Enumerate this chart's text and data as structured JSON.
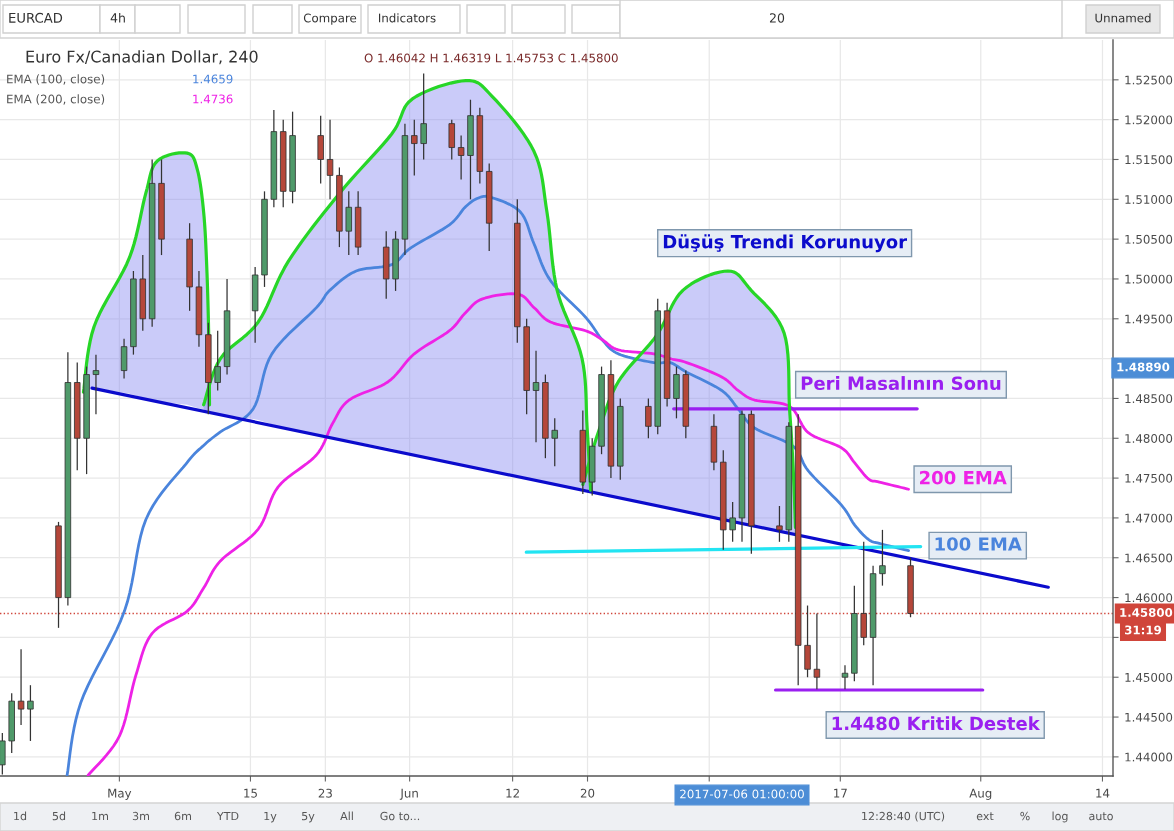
{
  "chart_data": {
    "type": "candlestick",
    "title": "Euro Fx/Canadian Dollar, 240",
    "subtitle": "O 1.46042 H 1.46319 L 1.45753 C 1.45800",
    "x": [
      "2017-04-18T12:00",
      "2017-04-19T12:00",
      "2017-04-20T12:00",
      "2017-04-21T12:00",
      "2017-04-24T12:00",
      "2017-04-25T12:00",
      "2017-04-26T12:00",
      "2017-04-27T12:00",
      "2017-04-28T12:00",
      "2017-05-01T12:00",
      "2017-05-02T12:00",
      "2017-05-03T12:00",
      "2017-05-04T12:00",
      "2017-05-05T12:00",
      "2017-05-08T12:00",
      "2017-05-09T12:00",
      "2017-05-10T12:00",
      "2017-05-11T12:00",
      "2017-05-12T12:00",
      "2017-05-15T12:00",
      "2017-05-16T12:00",
      "2017-05-17T12:00",
      "2017-05-18T12:00",
      "2017-05-19T12:00",
      "2017-05-22T12:00",
      "2017-05-23T12:00",
      "2017-05-24T12:00",
      "2017-05-25T12:00",
      "2017-05-26T12:00",
      "2017-05-29T12:00",
      "2017-05-30T12:00",
      "2017-05-31T12:00",
      "2017-06-01T12:00",
      "2017-06-02T12:00",
      "2017-06-05T12:00",
      "2017-06-06T12:00",
      "2017-06-07T12:00",
      "2017-06-08T12:00",
      "2017-06-09T12:00",
      "2017-06-12T12:00",
      "2017-06-13T12:00",
      "2017-06-14T12:00",
      "2017-06-15T12:00",
      "2017-06-16T12:00",
      "2017-06-19T12:00",
      "2017-06-20T12:00",
      "2017-06-21T12:00",
      "2017-06-22T12:00",
      "2017-06-23T12:00",
      "2017-06-26T12:00",
      "2017-06-27T12:00",
      "2017-06-28T12:00",
      "2017-06-29T12:00",
      "2017-06-30T12:00",
      "2017-07-03T12:00",
      "2017-07-04T12:00",
      "2017-07-05T12:00",
      "2017-07-06T12:00",
      "2017-07-07T12:00",
      "2017-07-10T12:00",
      "2017-07-11T12:00",
      "2017-07-12T12:00",
      "2017-07-13T12:00",
      "2017-07-14T12:00",
      "2017-07-17T12:00",
      "2017-07-18T12:00",
      "2017-07-19T12:00",
      "2017-07-20T12:00",
      "2017-07-21T12:00",
      "2017-07-24T12:00"
    ],
    "ohlc": [
      [
        1.439,
        1.443,
        1.4378,
        1.442
      ],
      [
        1.442,
        1.448,
        1.4405,
        1.447
      ],
      [
        1.447,
        1.4535,
        1.444,
        1.446
      ],
      [
        1.446,
        1.449,
        1.442,
        1.447
      ],
      [
        1.469,
        1.4695,
        1.4562,
        1.46
      ],
      [
        1.46,
        1.4908,
        1.459,
        1.487
      ],
      [
        1.487,
        1.4895,
        1.476,
        1.48
      ],
      [
        1.48,
        1.489,
        1.4755,
        1.488
      ],
      [
        1.488,
        1.4905,
        1.483,
        1.4885
      ],
      [
        1.4885,
        1.4925,
        1.4875,
        1.4915
      ],
      [
        1.4915,
        1.501,
        1.4905,
        1.5
      ],
      [
        1.5,
        1.503,
        1.4935,
        1.495
      ],
      [
        1.495,
        1.515,
        1.494,
        1.512
      ],
      [
        1.512,
        1.515,
        1.503,
        1.505
      ],
      [
        1.505,
        1.507,
        1.496,
        1.499
      ],
      [
        1.499,
        1.501,
        1.4915,
        1.493
      ],
      [
        1.493,
        1.4945,
        1.483,
        1.487
      ],
      [
        1.487,
        1.4935,
        1.486,
        1.489
      ],
      [
        1.489,
        1.5,
        1.488,
        1.496
      ],
      [
        1.496,
        1.5015,
        1.492,
        1.5005
      ],
      [
        1.5005,
        1.511,
        1.499,
        1.51
      ],
      [
        1.51,
        1.5212,
        1.509,
        1.5185
      ],
      [
        1.5185,
        1.52,
        1.509,
        1.511
      ],
      [
        1.511,
        1.521,
        1.5095,
        1.518
      ],
      [
        1.518,
        1.5205,
        1.512,
        1.515
      ],
      [
        1.515,
        1.52,
        1.51,
        1.513
      ],
      [
        1.513,
        1.514,
        1.504,
        1.506
      ],
      [
        1.506,
        1.511,
        1.503,
        1.509
      ],
      [
        1.509,
        1.511,
        1.503,
        1.504
      ],
      [
        1.504,
        1.506,
        1.4975,
        1.5
      ],
      [
        1.5,
        1.506,
        1.4985,
        1.505
      ],
      [
        1.505,
        1.5195,
        1.503,
        1.518
      ],
      [
        1.518,
        1.52,
        1.513,
        1.517
      ],
      [
        1.517,
        1.5258,
        1.515,
        1.5195
      ],
      [
        1.5195,
        1.52,
        1.515,
        1.5165
      ],
      [
        1.5165,
        1.518,
        1.5125,
        1.5155
      ],
      [
        1.5155,
        1.5225,
        1.51,
        1.5205
      ],
      [
        1.5205,
        1.5215,
        1.512,
        1.5135
      ],
      [
        1.5135,
        1.5145,
        1.5035,
        1.507
      ],
      [
        1.507,
        1.51,
        1.492,
        1.494
      ],
      [
        1.494,
        1.495,
        1.483,
        1.486
      ],
      [
        1.486,
        1.491,
        1.4795,
        1.487
      ],
      [
        1.487,
        1.488,
        1.4775,
        1.48
      ],
      [
        1.48,
        1.4825,
        1.4765,
        1.481
      ],
      [
        1.481,
        1.4835,
        1.473,
        1.4745
      ],
      [
        1.4745,
        1.48,
        1.4728,
        1.479
      ],
      [
        1.479,
        1.489,
        1.478,
        1.488
      ],
      [
        1.488,
        1.4898,
        1.475,
        1.4765
      ],
      [
        1.4765,
        1.485,
        1.4748,
        1.484
      ],
      [
        1.484,
        1.485,
        1.48,
        1.4815
      ],
      [
        1.4815,
        1.4975,
        1.4805,
        1.496
      ],
      [
        1.496,
        1.497,
        1.484,
        1.485
      ],
      [
        1.485,
        1.489,
        1.4825,
        1.488
      ],
      [
        1.488,
        1.4885,
        1.48,
        1.4815
      ],
      [
        1.4815,
        1.483,
        1.476,
        1.477
      ],
      [
        1.477,
        1.4785,
        1.466,
        1.4685
      ],
      [
        1.4685,
        1.472,
        1.467,
        1.47
      ],
      [
        1.47,
        1.4835,
        1.467,
        1.483
      ],
      [
        1.483,
        1.4835,
        1.4655,
        1.469
      ],
      [
        1.469,
        1.4715,
        1.467,
        1.4685
      ],
      [
        1.4685,
        1.482,
        1.467,
        1.4815
      ],
      [
        1.4815,
        1.483,
        1.449,
        1.454
      ],
      [
        1.454,
        1.459,
        1.45,
        1.451
      ],
      [
        1.451,
        1.458,
        1.4485,
        1.45
      ],
      [
        1.45,
        1.4515,
        1.4485,
        1.4505
      ],
      [
        1.4505,
        1.4615,
        1.4495,
        1.458
      ],
      [
        1.458,
        1.467,
        1.454,
        1.455
      ],
      [
        1.455,
        1.464,
        1.449,
        1.463
      ],
      [
        1.463,
        1.4685,
        1.4615,
        1.464
      ],
      [
        1.464,
        1.465,
        1.45753,
        1.458
      ]
    ],
    "colors": [
      "#4f9a6a",
      "#4f9a6a",
      "#b5473a",
      "#4f9a6a",
      "#b5473a",
      "#4f9a6a",
      "#b5473a",
      "#4f9a6a",
      "#4f9a6a",
      "#4f9a6a",
      "#4f9a6a",
      "#b5473a",
      "#4f9a6a",
      "#b5473a",
      "#b5473a",
      "#b5473a",
      "#b5473a",
      "#4f9a6a",
      "#4f9a6a",
      "#4f9a6a",
      "#4f9a6a",
      "#4f9a6a",
      "#b5473a",
      "#4f9a6a",
      "#b5473a",
      "#b5473a",
      "#b5473a",
      "#4f9a6a",
      "#b5473a",
      "#b5473a",
      "#4f9a6a",
      "#4f9a6a",
      "#b5473a",
      "#4f9a6a",
      "#b5473a",
      "#b5473a",
      "#4f9a6a",
      "#b5473a",
      "#b5473a",
      "#b5473a",
      "#b5473a",
      "#4f9a6a",
      "#b5473a",
      "#4f9a6a",
      "#b5473a",
      "#4f9a6a",
      "#4f9a6a",
      "#b5473a",
      "#4f9a6a",
      "#b5473a",
      "#4f9a6a",
      "#b5473a",
      "#4f9a6a",
      "#b5473a",
      "#b5473a",
      "#b5473a",
      "#4f9a6a",
      "#4f9a6a",
      "#b5473a",
      "#b5473a",
      "#4f9a6a",
      "#b5473a",
      "#b5473a",
      "#b5473a",
      "#4f9a6a",
      "#4f9a6a",
      "#b5473a",
      "#4f9a6a",
      "#4f9a6a",
      "#b5473a"
    ],
    "series": [
      {
        "name": "100 EMA",
        "type": "line",
        "color": "#4a84dc",
        "x": [
          "2017-04-25T10:00",
          "2017-04-26T21:00",
          "2017-05-01T13:00",
          "2017-05-03T20:00",
          "2017-05-08T03:00",
          "2017-05-10T00:00",
          "2017-05-11T19:00",
          "2017-05-15T07:00",
          "2017-05-17T07:00",
          "2017-05-22T01:00",
          "2017-05-23T12:00",
          "2017-05-26T07:00",
          "2017-05-30T02:00",
          "2017-06-01T03:00",
          "2017-06-05T06:00",
          "2017-06-07T00:00",
          "2017-06-08T10:00",
          "2017-06-09T20:00",
          "2017-06-12T20:00",
          "2017-06-14T07:00",
          "2017-06-16T01:00",
          "2017-06-19T19:00",
          "2017-06-21T13:00",
          "2017-06-23T07:00",
          "2017-06-27T02:00",
          "2017-06-28T20:00",
          "2017-06-30T14:00",
          "2017-07-04T08:00",
          "2017-07-06T02:00",
          "2017-07-07T20:00",
          "2017-07-11T23:00",
          "2017-07-13T14:00",
          "2017-07-17T03:00",
          "2017-07-18T13:00",
          "2017-07-20T00:00",
          "2017-07-21T04:00",
          "2017-07-24T07:00"
        ],
        "values": [
          1.4377,
          1.4468,
          1.4583,
          1.4698,
          1.4768,
          1.4791,
          1.4808,
          1.4837,
          1.4906,
          1.4964,
          1.4986,
          1.501,
          1.5018,
          1.5039,
          1.5068,
          1.5091,
          1.5102,
          1.5102,
          1.5084,
          1.5044,
          1.4998,
          1.4952,
          1.4924,
          1.4906,
          1.4895,
          1.4895,
          1.4883,
          1.486,
          1.4837,
          1.4813,
          1.479,
          1.4759,
          1.4716,
          1.4691,
          1.4673,
          1.4668,
          1.4659
        ]
      },
      {
        "name": "200 EMA",
        "type": "line",
        "color": "#ee22e6",
        "x": [
          "2017-04-27T16:00",
          "2017-05-01T00:00",
          "2017-05-02T18:00",
          "2017-05-04T12:00",
          "2017-05-08T06:00",
          "2017-05-10T00:00",
          "2017-05-11T19:00",
          "2017-05-15T20:00",
          "2017-05-17T23:00",
          "2017-05-22T01:00",
          "2017-05-23T19:00",
          "2017-05-25T13:00",
          "2017-05-29T17:00",
          "2017-06-01T12:00",
          "2017-06-05T06:00",
          "2017-06-07T00:00",
          "2017-06-08T19:00",
          "2017-06-12T13:00",
          "2017-06-14T07:00",
          "2017-06-16T01:00",
          "2017-06-19T19:00",
          "2017-06-21T13:00",
          "2017-06-23T07:00",
          "2017-06-27T02:00",
          "2017-06-28T20:00",
          "2017-06-30T14:00",
          "2017-07-04T08:00",
          "2017-07-06T02:00",
          "2017-07-07T20:00",
          "2017-07-11T14:00",
          "2017-07-13T14:00",
          "2017-07-17T03:00",
          "2017-07-18T13:00",
          "2017-07-20T00:00",
          "2017-07-21T04:00",
          "2017-07-24T07:00"
        ],
        "values": [
          1.4377,
          1.4426,
          1.4502,
          1.4555,
          1.4583,
          1.4612,
          1.4646,
          1.4686,
          1.4739,
          1.4779,
          1.4819,
          1.4848,
          1.4871,
          1.4906,
          1.4935,
          1.4958,
          1.4975,
          1.4981,
          1.4964,
          1.4946,
          1.4935,
          1.4924,
          1.4911,
          1.4906,
          1.49,
          1.4895,
          1.4877,
          1.486,
          1.4848,
          1.484,
          1.4807,
          1.4788,
          1.4769,
          1.4749,
          1.4745,
          1.4736
        ]
      },
      {
        "name": "Düşüş Trendi Korunuyor",
        "type": "line",
        "color": "#0b0bcc",
        "x": [
          "2017-04-28T02:00",
          "2017-08-08T05:00"
        ],
        "values": [
          1.4863,
          1.4613
        ]
      },
      {
        "type": "line",
        "color": "#22e4f2",
        "x": [
          "2017-06-13T11:00",
          "2017-07-25T14:00"
        ],
        "values": [
          1.4657,
          1.4664
        ]
      },
      {
        "name": "Peri Masalının Sonu",
        "type": "line",
        "color": "#9a1ff0",
        "x": [
          "2017-06-29T05:00",
          "2017-07-25T05:00"
        ],
        "values": [
          1.4837,
          1.4837
        ]
      },
      {
        "name": "1.4480 Kritik Destek",
        "type": "line",
        "color": "#9a1ff0",
        "x": [
          "2017-07-10T02:00",
          "2017-08-01T05:00"
        ],
        "values": [
          1.4484,
          1.4484
        ]
      },
      {
        "type": "line",
        "color": "#27d627",
        "x": [
          "2017-04-27T04:00",
          "2017-04-28T07:00",
          "2017-05-02T02:00",
          "2017-05-03T20:00",
          "2017-05-05T01:00",
          "2017-05-08T06:00",
          "2017-05-09T08:00",
          "2017-05-10T00:00",
          "2017-05-10T08:00",
          "2017-05-10T13:00",
          "2017-05-10T15:00"
        ],
        "values": [
          1.4858,
          1.494,
          1.5027,
          1.5108,
          1.5148,
          1.5158,
          1.5137,
          1.5084,
          1.5015,
          1.4929,
          1.4842
        ],
        "lower": [
          1.4858,
          1.4863,
          1.4856,
          1.485,
          1.4846,
          1.4842,
          1.4838,
          1.4836,
          1.4835,
          1.4834,
          1.4834
        ],
        "upper": [
          1.4858,
          1.494,
          1.5027,
          1.5108,
          1.5148,
          1.5158,
          1.5137,
          1.5084,
          1.5015,
          1.4929,
          1.4842
        ]
      },
      {
        "type": "line",
        "color": "#27d627",
        "x": [
          "2017-05-10T00:00",
          "2017-05-11T19:00",
          "2017-05-15T20:00",
          "2017-05-19T01:00",
          "2017-05-24T13:00",
          "2017-05-30T02:00",
          "2017-06-01T07:00",
          "2017-06-07T00:00",
          "2017-06-09T20:00",
          "2017-06-14T07:00",
          "2017-06-15T16:00",
          "2017-06-16T18:00",
          "2017-06-19T10:00",
          "2017-06-19T23:00",
          "2017-06-20T08:00"
        ],
        "values": [
          1.4842,
          1.49,
          1.4946,
          1.5022,
          1.5108,
          1.5182,
          1.5226,
          1.5249,
          1.5229,
          1.516,
          1.5084,
          1.4986,
          1.49,
          1.4813,
          1.4735
        ],
        "lower": [
          1.4836,
          1.483,
          1.4823,
          1.4811,
          1.4799,
          1.4787,
          1.4779,
          1.4766,
          1.4757,
          1.4748,
          1.4743,
          1.474,
          1.4737,
          1.4736,
          1.4734
        ],
        "upper": [
          1.4842,
          1.49,
          1.4946,
          1.5022,
          1.5108,
          1.5182,
          1.5226,
          1.5249,
          1.5229,
          1.516,
          1.5084,
          1.4986,
          1.49,
          1.4813,
          1.4735
        ]
      },
      {
        "type": "line",
        "color": "#27d627",
        "x": [
          "2017-06-19T12:00",
          "2017-06-21T04:00",
          "2017-06-23T07:00",
          "2017-06-27T09:00",
          "2017-06-30T05:00",
          "2017-07-05T00:00",
          "2017-07-07T11:00",
          "2017-07-11T00:00",
          "2017-07-11T14:00",
          "2017-07-11T23:00",
          "2017-07-12T05:00"
        ],
        "values": [
          1.4742,
          1.4808,
          1.4871,
          1.4929,
          1.4986,
          1.501,
          1.4986,
          1.4932,
          1.4836,
          1.4764,
          1.4688
        ],
        "lower": [
          1.4737,
          1.4731,
          1.4724,
          1.4717,
          1.4707,
          1.4697,
          1.4689,
          1.4683,
          1.4681,
          1.468,
          1.4679
        ],
        "upper": [
          1.4742,
          1.4808,
          1.4871,
          1.4929,
          1.4986,
          1.501,
          1.4986,
          1.4932,
          1.4836,
          1.4764,
          1.4688
        ]
      }
    ],
    "xlim": [
      "2017-04-18T06:00",
      "2017-08-15T03:00"
    ],
    "ylim": [
      1.4376,
      1.53
    ],
    "xticks": [
      {
        "value": "2017-05-01",
        "label": "May"
      },
      {
        "value": "2017-05-15",
        "label": "15"
      },
      {
        "value": "2017-05-23",
        "label": "23"
      },
      {
        "value": "2017-06-01",
        "label": "Jun"
      },
      {
        "value": "2017-06-12",
        "label": "12"
      },
      {
        "value": "2017-06-20",
        "label": "20"
      },
      {
        "value": "2017-07-03",
        "label": null
      },
      {
        "value": "2017-07-17",
        "label": "17"
      },
      {
        "value": "2017-08-01",
        "label": "Aug"
      },
      {
        "value": "2017-08-14",
        "label": "14"
      }
    ],
    "yticks": [
      {
        "value": 1.44,
        "label": "1.44000"
      },
      {
        "value": 1.445,
        "label": "1.44500"
      },
      {
        "value": 1.45,
        "label": "1.45000"
      },
      {
        "value": 1.455,
        "label": null
      },
      {
        "value": 1.46,
        "label": "1.46000"
      },
      {
        "value": 1.465,
        "label": "1.46500"
      },
      {
        "value": 1.47,
        "label": "1.47000"
      },
      {
        "value": 1.475,
        "label": "1.47500"
      },
      {
        "value": 1.48,
        "label": "1.48000"
      },
      {
        "value": 1.485,
        "label": "1.48500"
      },
      {
        "value": 1.49,
        "label": null
      },
      {
        "value": 1.495,
        "label": "1.49500"
      },
      {
        "value": 1.5,
        "label": "1.50000"
      },
      {
        "value": 1.505,
        "label": "1.50500"
      },
      {
        "value": 1.51,
        "label": "1.51000"
      },
      {
        "value": 1.515,
        "label": "1.51500"
      },
      {
        "value": 1.52,
        "label": "1.52000"
      },
      {
        "value": 1.525,
        "label": "1.52500"
      }
    ],
    "grid": true,
    "ref_lines": [
      {
        "axis": "y",
        "value": 1.458,
        "label": "1.45800",
        "color": "#d0453a",
        "line_style": "dotted"
      }
    ],
    "annotations": [
      "EURCAD",
      "4h",
      "Compare",
      "Indicators",
      "20",
      "Unnamed",
      "EMA (100, close)",
      "1.4659",
      "EMA (200, close)",
      "1.4736",
      "31:19",
      "1d",
      "5d",
      "1m",
      "3m",
      "6m",
      "YTD",
      "1y",
      "5y",
      "All",
      "Go to...",
      "12:28:40 (UTC)",
      "ext",
      "%",
      "log",
      "auto",
      "2017-07-06 01:00:00",
      "1.48890"
    ]
  }
}
